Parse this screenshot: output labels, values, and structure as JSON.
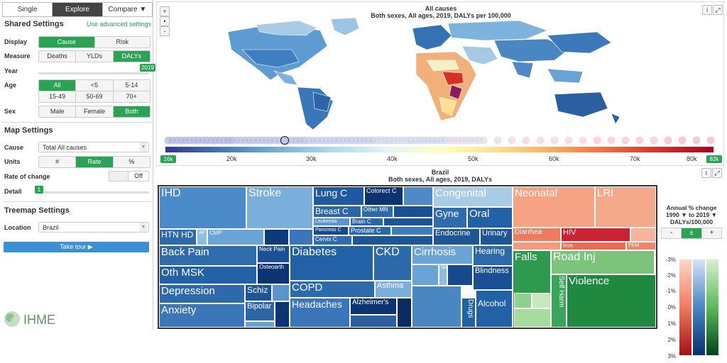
{
  "tabs": {
    "single": "Single",
    "explore": "Explore",
    "compare": "Compare ▼"
  },
  "shared": {
    "title": "Shared Settings",
    "advanced": "Use advanced settings",
    "display_label": "Display",
    "display": [
      "Cause",
      "Risk"
    ],
    "measure_label": "Measure",
    "measure": [
      "Deaths",
      "YLDs",
      "DALYs"
    ],
    "year_label": "Year",
    "year_value": "2019",
    "age_label": "Age",
    "age_row1": [
      "All",
      "<5",
      "5-14"
    ],
    "age_row2": [
      "15-49",
      "50-69",
      "70+"
    ],
    "sex_label": "Sex",
    "sex": [
      "Male",
      "Female",
      "Both"
    ]
  },
  "map_settings": {
    "title": "Map Settings",
    "cause_label": "Cause",
    "cause_value": "Total All causes",
    "units_label": "Units",
    "units": [
      "#",
      "Rate",
      "%"
    ],
    "roc_label": "Rate of change",
    "roc_toggle": "Off",
    "detail_label": "Detail",
    "detail_value": "1"
  },
  "treemap_settings": {
    "title": "Treemap Settings",
    "location_label": "Location",
    "location_value": "Brazil",
    "tour": "Take tour ▶"
  },
  "logo": "IHME",
  "map": {
    "title": "All causes",
    "subtitle": "Both sexes, All ages, 2019, DALYs per 100,000",
    "zoom_in": "+",
    "zoom_out": "-",
    "dot": "•",
    "info": "i",
    "expand": "⤢",
    "scale_min": "16k",
    "scale_max": "83k",
    "ticks": [
      "20k",
      "30k",
      "40k",
      "50k",
      "60k",
      "70k",
      "80k"
    ]
  },
  "treemap": {
    "title": "Brazil",
    "subtitle": "Both sexes, All ages, 2019, DALYs",
    "cells": {
      "ihd": "IHD",
      "stroke": "Stroke",
      "lungc": "Lung C",
      "colorectc": "Colorect C",
      "breastc": "Breast C",
      "othermn": "Other MN",
      "leukemia": "Leukemia",
      "brainc": "Brain C",
      "pancreasc": "Pancreas C",
      "prostatec": "Prostate C",
      "cervixc": "Cervix C",
      "htnhd": "HTN HD",
      "cmp": "CMP",
      "af": "AF",
      "backpain": "Back Pain",
      "neckpain": "Neck Pain",
      "othmsk": "Oth MSK",
      "osteoarth": "Osteoarth",
      "depression": "Depression",
      "schiz": "Schiz",
      "anxiety": "Anxiety",
      "bipolar": "Bipolar",
      "diabetes": "Diabetes",
      "ckd": "CKD",
      "copd": "COPD",
      "asthma": "Asthma",
      "headaches": "Headaches",
      "alzheimers": "Alzheimer's",
      "congenital": "Congenital",
      "gyne": "Gyne",
      "oral": "Oral",
      "endocrine": "Endocrine",
      "urinary": "Urinary",
      "cirrhosis": "Cirrhosis",
      "hearing": "Hearing",
      "blindness": "Blindness",
      "skin": "Skin",
      "alcohol": "Alcohol",
      "drugs": "Drugs",
      "neonatal": "Neonatal",
      "lri": "LRI",
      "diarrhea": "Diarrhea",
      "hiv": "HIV",
      "iron": "Iron",
      "pem": "PEM",
      "falls": "Falls",
      "roadinj": "Road Inj",
      "selfharm": "Self Harm",
      "violence": "Violence"
    }
  },
  "legend": {
    "title": "Annual % change",
    "range": "1990 ▼ to 2019 ▼",
    "unit": "DALYs/100,000",
    "buttons": [
      "-",
      "±",
      "+"
    ],
    "ticks": [
      "-3%",
      "-2%",
      "-1%",
      "0%",
      "1%",
      "2%",
      "3%"
    ]
  }
}
